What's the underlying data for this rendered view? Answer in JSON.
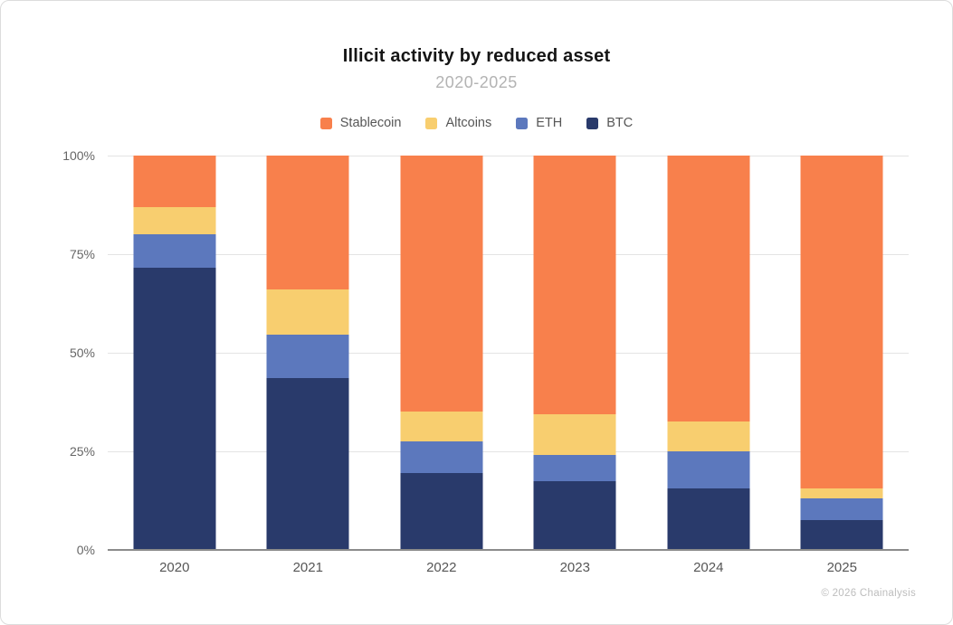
{
  "footer": {
    "copyright": "© 2026 Chainalysis"
  },
  "chart_data": {
    "type": "bar",
    "stacked": true,
    "title": "Illicit activity by reduced asset",
    "subtitle": "2020-2025",
    "categories": [
      "2020",
      "2021",
      "2022",
      "2023",
      "2024",
      "2025"
    ],
    "series": [
      {
        "name": "Stablecoin",
        "color": "#F8804C",
        "values": [
          13.0,
          34.0,
          65.0,
          65.5,
          67.5,
          84.5
        ]
      },
      {
        "name": "Altcoins",
        "color": "#F8CE6F",
        "values": [
          7.0,
          11.5,
          7.5,
          10.5,
          7.5,
          2.5
        ]
      },
      {
        "name": "ETH",
        "color": "#5C78BD",
        "values": [
          8.5,
          11.0,
          8.0,
          6.5,
          9.5,
          5.5
        ]
      },
      {
        "name": "BTC",
        "color": "#293A6B",
        "values": [
          71.5,
          43.5,
          19.5,
          17.5,
          15.5,
          7.5
        ]
      }
    ],
    "stack_order_top_to_bottom": [
      "Stablecoin",
      "Altcoins",
      "ETH",
      "BTC"
    ],
    "ylabel": "",
    "xlabel": "",
    "y_axis": {
      "min": 0,
      "max": 100,
      "unit": "%",
      "ticks": [
        {
          "label": "0%",
          "value": 0
        },
        {
          "label": "25%",
          "value": 25
        },
        {
          "label": "50%",
          "value": 50
        },
        {
          "label": "75%",
          "value": 75
        },
        {
          "label": "100%",
          "value": 100
        }
      ]
    },
    "legend_position": "top",
    "grid": true,
    "colors": {
      "title": "#151515",
      "subtitle": "#b3b3b3",
      "axis_text": "#666666",
      "gridline": "#e4e4e4",
      "baseline": "#8b8b8b"
    }
  }
}
